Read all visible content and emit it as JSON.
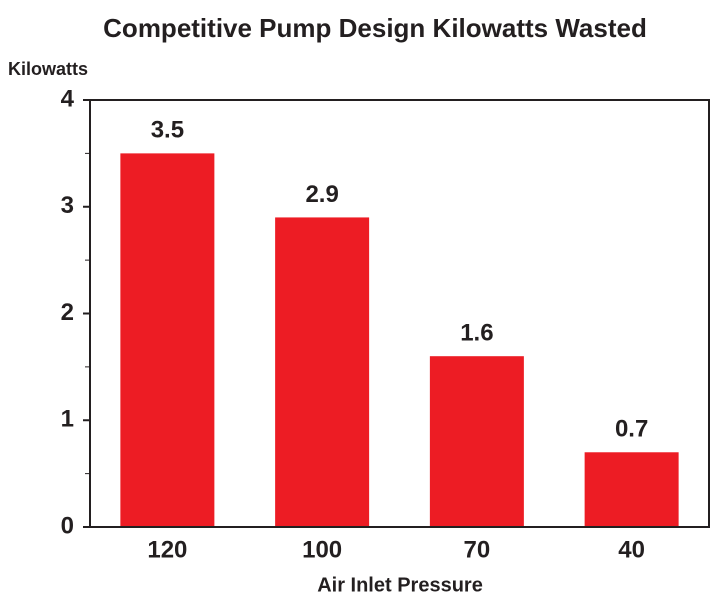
{
  "chart_data": {
    "type": "bar",
    "title": "Competitive Pump Design Kilowatts Wasted",
    "y_label": "Kilowatts",
    "x_label": "Air Inlet Pressure",
    "categories": [
      "120",
      "100",
      "70",
      "40"
    ],
    "values": [
      3.5,
      2.9,
      1.6,
      0.7
    ],
    "color": "#ed1c24",
    "ylim": [
      0,
      4
    ],
    "yticks": [
      0,
      1,
      2,
      3,
      4
    ],
    "minor_yticks": [
      0.5,
      1.5,
      2.5,
      3.5
    ],
    "grid": false
  }
}
